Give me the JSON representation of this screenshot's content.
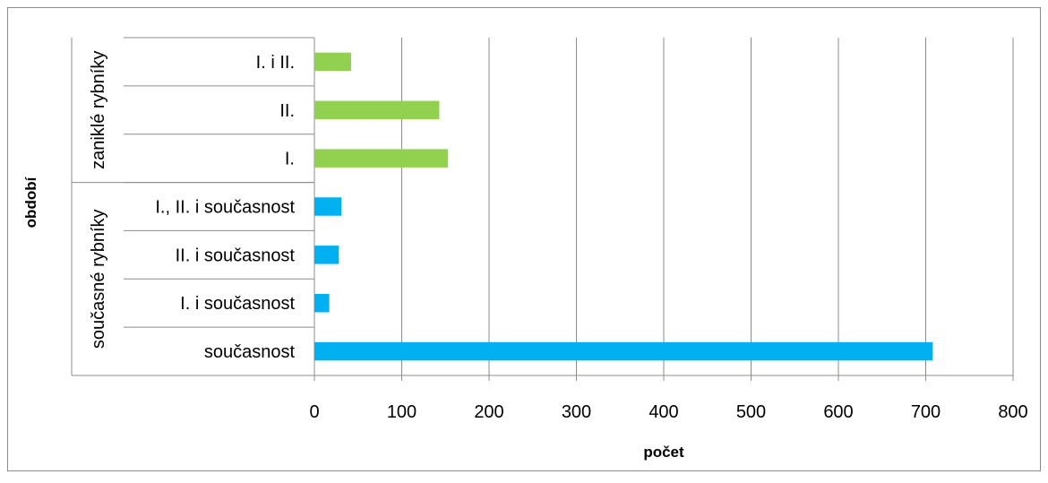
{
  "chart_data": {
    "type": "bar",
    "orientation": "horizontal",
    "xlabel": "počet",
    "ylabel": "období",
    "xlim": [
      0,
      800
    ],
    "xticks": [
      0,
      100,
      200,
      300,
      400,
      500,
      600,
      700,
      800
    ],
    "grid": true,
    "legend": "none",
    "groups": [
      {
        "name": "zaniklé rybníky",
        "color": "#92d050",
        "categories": [
          "I. i II.",
          "II.",
          "I."
        ],
        "values": [
          42,
          143,
          153
        ]
      },
      {
        "name": "současné rybníky",
        "color": "#00b0f0",
        "categories": [
          "I., II. i současnost",
          "II. i současnost",
          "I. i současnost",
          "současnost"
        ],
        "values": [
          31,
          28,
          17,
          708
        ]
      }
    ]
  }
}
